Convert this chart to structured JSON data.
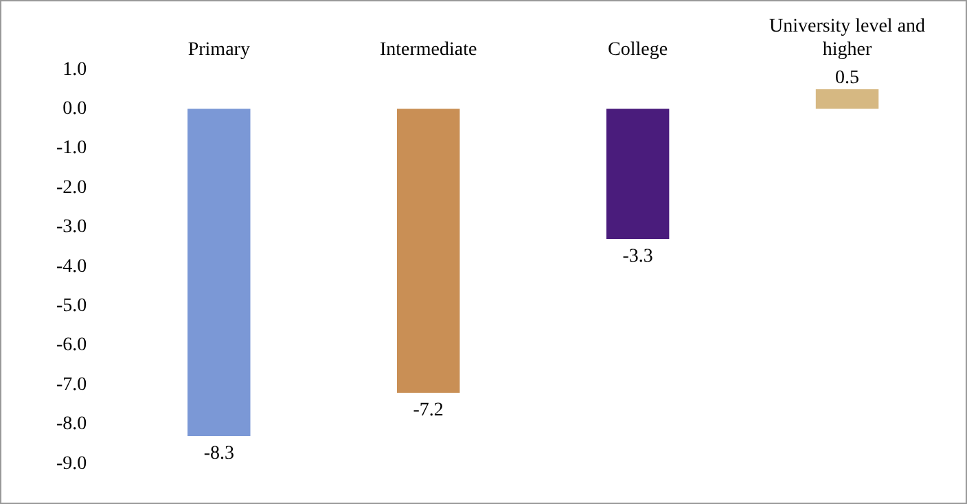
{
  "chart_data": {
    "type": "bar",
    "categories": [
      "Primary",
      "Intermediate",
      "College",
      "University level and higher"
    ],
    "values": [
      -8.3,
      -7.2,
      -3.3,
      0.5
    ],
    "colors": [
      "#7b98d6",
      "#c98f55",
      "#4a1c7c",
      "#d6b882"
    ],
    "ylim": [
      -9,
      1
    ],
    "yticks": [
      {
        "value": 1,
        "label": "1.0"
      },
      {
        "value": 0,
        "label": "0.0"
      },
      {
        "value": -1,
        "label": "-1.0"
      },
      {
        "value": -2,
        "label": "-2.0"
      },
      {
        "value": -3,
        "label": "-3.0"
      },
      {
        "value": -4,
        "label": "-4.0"
      },
      {
        "value": -5,
        "label": "-5.0"
      },
      {
        "value": -6,
        "label": "-6.0"
      },
      {
        "value": -7,
        "label": "-7.0"
      },
      {
        "value": -8,
        "label": "-8.0"
      },
      {
        "value": -9,
        "label": "-9.0"
      }
    ],
    "grid": false,
    "legend": false,
    "data_labels": true
  }
}
